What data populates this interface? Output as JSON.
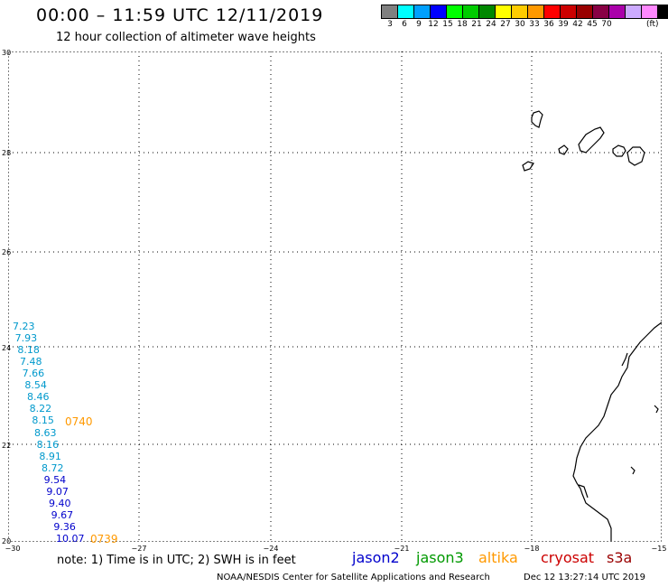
{
  "header": {
    "title": "00:00 – 11:59 UTC 12/11/2019",
    "subtitle": "12 hour collection of altimeter wave heights"
  },
  "scale": {
    "labels": [
      "3",
      "6",
      "9",
      "12",
      "15",
      "18",
      "21",
      "24",
      "27",
      "30",
      "33",
      "36",
      "39",
      "42",
      "45",
      "70"
    ],
    "units": "(ft)",
    "colors": [
      "#808080",
      "#00ffff",
      "#00a0ff",
      "#0000ff",
      "#00ff00",
      "#00cc00",
      "#008800",
      "#ffff00",
      "#ffcc00",
      "#ff9900",
      "#ff0000",
      "#cc0000",
      "#990000",
      "#880044",
      "#aa00aa",
      "#ccaaff",
      "#ff88ff",
      "#000000"
    ]
  },
  "axes": {
    "x_labels": [
      "−30",
      "−27",
      "−24",
      "−21",
      "−18",
      "−15"
    ],
    "y_labels": [
      "30",
      "28",
      "26",
      "24",
      "22",
      "20"
    ]
  },
  "observations": [
    {
      "text": "7.23",
      "color": "#0099cc"
    },
    {
      "text": "7.93",
      "color": "#0099cc"
    },
    {
      "text": "8.18",
      "color": "#0099cc"
    },
    {
      "text": "7.48",
      "color": "#0099cc"
    },
    {
      "text": "7.66",
      "color": "#0099cc"
    },
    {
      "text": "8.54",
      "color": "#0099cc"
    },
    {
      "text": "8.46",
      "color": "#0099cc"
    },
    {
      "text": "8.22",
      "color": "#0099cc"
    },
    {
      "text": "8.15",
      "color": "#0099cc"
    },
    {
      "text": "8.63",
      "color": "#0099cc"
    },
    {
      "text": "8.16",
      "color": "#0099cc"
    },
    {
      "text": "8.91",
      "color": "#0099cc"
    },
    {
      "text": "8.72",
      "color": "#0099cc"
    },
    {
      "text": "9.54",
      "color": "#0000cc"
    },
    {
      "text": "9.07",
      "color": "#0000cc"
    },
    {
      "text": "9.40",
      "color": "#0000cc"
    },
    {
      "text": "9.67",
      "color": "#0000cc"
    },
    {
      "text": "9.36",
      "color": "#0000cc"
    },
    {
      "text": "10.07",
      "color": "#0000cc"
    }
  ],
  "time_labels": [
    {
      "text": "0740",
      "color": "#ff9900"
    },
    {
      "text": "0739",
      "color": "#ff9900"
    }
  ],
  "footer": {
    "note": "note:  1) Time is in UTC;  2) SWH is in feet",
    "satellites": [
      {
        "name": "jason2",
        "color": "#0000cc"
      },
      {
        "name": "jason3",
        "color": "#009900"
      },
      {
        "name": "altika",
        "color": "#ff9900"
      },
      {
        "name": "cryosat",
        "color": "#cc0000"
      },
      {
        "name": "s3a",
        "color": "#990000"
      }
    ],
    "credit": "NOAA/NESDIS Center for Satellite Applications and Research",
    "timestamp": "Dec 12 13:27:14 UTC 2019"
  }
}
